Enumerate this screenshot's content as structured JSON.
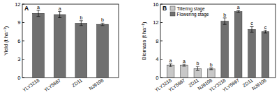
{
  "chart_data": [
    {
      "type": "bar",
      "title": "A",
      "y_label": "Yield (t ha⁻¹)",
      "categories": [
        "YLY3218",
        "YLY5867",
        "ZD11",
        "NJ9108"
      ],
      "values": [
        10.5,
        10.3,
        8.9,
        8.7
      ],
      "errors": [
        0.5,
        0.5,
        0.4,
        0.2
      ],
      "letters": [
        "a",
        "a",
        "b",
        "b"
      ],
      "color": "#707070",
      "ylim": [
        0,
        12
      ],
      "yticks": [
        0,
        3,
        6,
        9,
        12
      ],
      "grid": false
    },
    {
      "type": "bar",
      "title": "B",
      "y_label": "Biomass (t ha⁻¹)",
      "categories": [
        "YLY3218",
        "YLY5867",
        "ZD11",
        "NJ9108",
        "YLY3218",
        "YLY5867",
        "ZD11",
        "NJ9108"
      ],
      "series": [
        {
          "name": "Tillering stage",
          "color": "#c8c8c8",
          "values": [
            2.7,
            2.7,
            2.0,
            1.9,
            null,
            null,
            null,
            null
          ],
          "errors": [
            0.3,
            0.2,
            0.4,
            0.2,
            null,
            null,
            null,
            null
          ],
          "letters": [
            "a",
            "a",
            "b",
            "b",
            null,
            null,
            null,
            null
          ]
        },
        {
          "name": "Flowering stage",
          "color": "#707070",
          "values": [
            null,
            null,
            null,
            null,
            12.3,
            14.4,
            10.5,
            10.0
          ],
          "errors": [
            null,
            null,
            null,
            null,
            0.7,
            0.2,
            0.6,
            0.3
          ],
          "letters": [
            null,
            null,
            null,
            null,
            "b",
            "a",
            "c",
            "c"
          ]
        }
      ],
      "legend": "upper left",
      "ylim": [
        0,
        16
      ],
      "yticks": [
        0,
        4,
        8,
        12,
        16
      ],
      "grid": false
    }
  ]
}
